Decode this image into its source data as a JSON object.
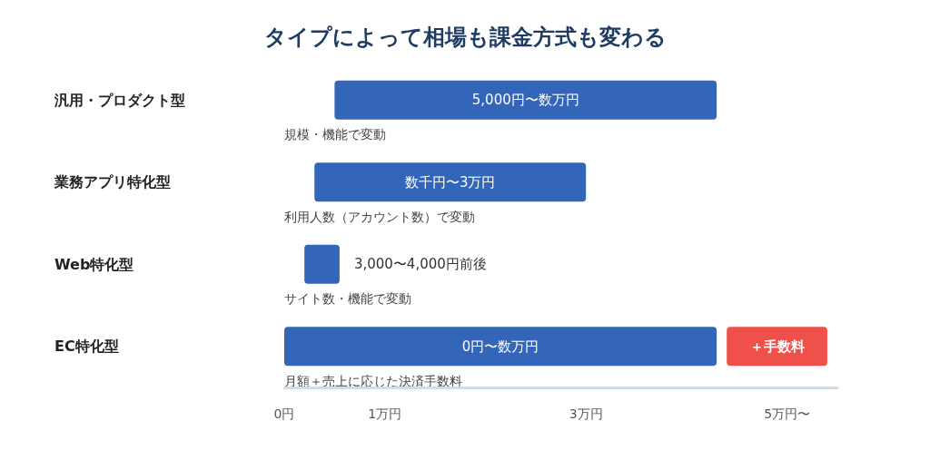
{
  "chart_data": {
    "type": "bar",
    "orientation": "horizontal",
    "title": "タイプによって相場も課金方式も変わる",
    "categories": [
      "汎用・プロダクト型",
      "業務アプリ特化型",
      "Web特化型",
      "EC特化型"
    ],
    "series": [
      {
        "color": "#3366b8",
        "base": [
          0.5,
          0.3,
          0.2,
          0
        ],
        "values": [
          3.8,
          2.7,
          0.35,
          4.3
        ]
      },
      {
        "color": "#f0504a",
        "base": [
          null,
          null,
          null,
          4.4
        ],
        "values": [
          null,
          null,
          null,
          1.0
        ]
      }
    ],
    "xlim": [
      0,
      5.5
    ],
    "xticks": [
      {
        "value": 0,
        "label": "0円"
      },
      {
        "value": 1,
        "label": "1万円"
      },
      {
        "value": 3,
        "label": "3万円"
      },
      {
        "value": 5,
        "label": "5万円〜"
      }
    ],
    "annotations": [
      "5,000円〜数万円",
      "数千円〜3万円",
      "3,000〜4,000円前後",
      "0円〜数万円",
      "＋手数料",
      "規模・機能で変動",
      "利用人数（アカウント数）で変動",
      "サイト数・機能で変動",
      "月額＋売上に応じた決済手数料"
    ],
    "grid": false
  }
}
